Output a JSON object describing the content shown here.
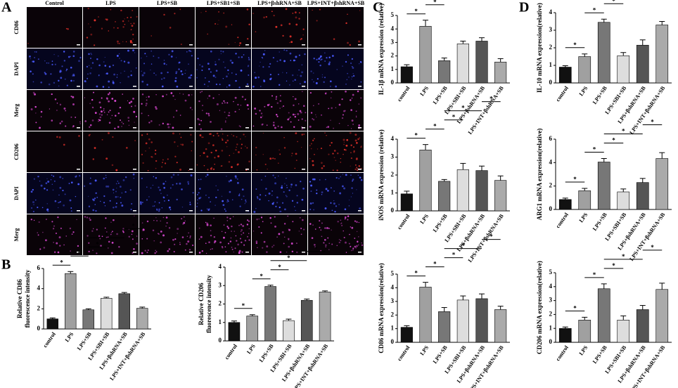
{
  "figure": {
    "panels": [
      "A",
      "B",
      "C",
      "D"
    ],
    "images": {
      "columns": [
        "Control",
        "LPS",
        "LPS+SB",
        "LPS+SB1+SB",
        "LPS+βshRNA+SB",
        "LPS+INT+βshRNA+SB"
      ],
      "rows": [
        "CD86",
        "DAPI",
        "Merg",
        "CD206",
        "DAPI",
        "Merg"
      ]
    }
  },
  "chart_data": [
    {
      "type": "bar",
      "ylabel": [
        "Relative CD86",
        "fluorescence intensity"
      ],
      "categories": [
        "control",
        "LPS",
        "LPS+SB",
        "LPS+SBI+SB",
        "LPS+βshRNA+SB",
        "LPS+INT+βshRNA+SB"
      ],
      "values": [
        1.0,
        5.5,
        1.9,
        3.05,
        3.5,
        2.05
      ],
      "errors": [
        0.1,
        0.2,
        0.1,
        0.1,
        0.12,
        0.12
      ],
      "colors": [
        "#111111",
        "#a0a0a0",
        "#777777",
        "#dddddd",
        "#555555",
        "#aaaaaa"
      ],
      "ylim": [
        0,
        6
      ],
      "yticks": [
        0,
        2,
        4,
        6
      ],
      "significance": [
        {
          "pair": [
            0,
            1
          ],
          "label": "*"
        },
        {
          "pair": [
            1,
            2
          ],
          "label": "*"
        },
        {
          "pair": [
            2,
            3
          ],
          "label": "*"
        },
        {
          "pair": [
            2,
            4
          ],
          "label": "*"
        },
        {
          "pair": [
            4,
            5
          ],
          "label": "*"
        }
      ]
    },
    {
      "type": "bar",
      "ylabel": [
        "Relative CD206",
        "fluorescence intensity"
      ],
      "categories": [
        "control",
        "LPS",
        "LPS+SB",
        "LPS+SBI+SB",
        "LPS+βshRNA+SB",
        "LPS+INT+βshRNA+SB"
      ],
      "values": [
        1.0,
        1.35,
        2.95,
        1.1,
        2.2,
        2.65
      ],
      "errors": [
        0.08,
        0.07,
        0.07,
        0.08,
        0.07,
        0.06
      ],
      "colors": [
        "#111111",
        "#a0a0a0",
        "#777777",
        "#dddddd",
        "#555555",
        "#aaaaaa"
      ],
      "ylim": [
        0,
        4
      ],
      "yticks": [
        0,
        1,
        2,
        3,
        4
      ],
      "significance": [
        {
          "pair": [
            0,
            1
          ],
          "label": "*"
        },
        {
          "pair": [
            1,
            2
          ],
          "label": "*"
        },
        {
          "pair": [
            2,
            3
          ],
          "label": "*"
        },
        {
          "pair": [
            2,
            4
          ],
          "label": "*"
        },
        {
          "pair": [
            4,
            5
          ],
          "label": "*"
        }
      ]
    },
    {
      "type": "bar",
      "ylabel": [
        "IL-1β mRNA expression (relative)"
      ],
      "categories": [
        "control",
        "LPS",
        "LPS+SB",
        "LPS+SBI+SB",
        "LPS+βshRNA+SB",
        "LPS+INT+βshRNA+SB"
      ],
      "values": [
        1.2,
        4.2,
        1.65,
        2.9,
        3.1,
        1.55
      ],
      "errors": [
        0.15,
        0.45,
        0.2,
        0.2,
        0.25,
        0.25
      ],
      "colors": [
        "#111111",
        "#a0a0a0",
        "#777777",
        "#dddddd",
        "#555555",
        "#aaaaaa"
      ],
      "ylim": [
        0,
        5
      ],
      "yticks": [
        0,
        1,
        2,
        3,
        4,
        5
      ],
      "significance": [
        {
          "pair": [
            0,
            1
          ],
          "label": "*"
        },
        {
          "pair": [
            1,
            2
          ],
          "label": "*"
        },
        {
          "pair": [
            2,
            3
          ],
          "label": "*"
        },
        {
          "pair": [
            2,
            4
          ],
          "label": "*"
        },
        {
          "pair": [
            4,
            5
          ],
          "label": "*"
        }
      ]
    },
    {
      "type": "bar",
      "ylabel": [
        "iNOS mRNA expression (relative)"
      ],
      "categories": [
        "control",
        "LPS",
        "LPS+SB",
        "LPS+SBI+SB",
        "LPS+βshRNA+SB",
        "LPS+INT+βshRNA+SB"
      ],
      "values": [
        0.95,
        3.4,
        1.65,
        2.3,
        2.25,
        1.7
      ],
      "errors": [
        0.15,
        0.3,
        0.1,
        0.35,
        0.25,
        0.25
      ],
      "colors": [
        "#111111",
        "#a0a0a0",
        "#777777",
        "#dddddd",
        "#555555",
        "#aaaaaa"
      ],
      "ylim": [
        0,
        4
      ],
      "yticks": [
        0,
        1,
        2,
        3,
        4
      ],
      "significance": [
        {
          "pair": [
            0,
            1
          ],
          "label": "*"
        },
        {
          "pair": [
            1,
            2
          ],
          "label": "*"
        },
        {
          "pair": [
            2,
            3
          ],
          "label": "*"
        },
        {
          "pair": [
            2,
            4
          ],
          "label": "*"
        },
        {
          "pair": [
            4,
            5
          ],
          "label": "*"
        }
      ]
    },
    {
      "type": "bar",
      "ylabel": [
        "CD86 mRNA expression(relative)"
      ],
      "categories": [
        "control",
        "LPS",
        "LPS+SB",
        "LPS+SBI+SB",
        "LPS+βshRNA+SB",
        "LPS+INT+βshRNA+SB"
      ],
      "values": [
        1.1,
        4.05,
        2.25,
        3.1,
        3.2,
        2.4
      ],
      "errors": [
        0.12,
        0.35,
        0.3,
        0.3,
        0.35,
        0.25
      ],
      "colors": [
        "#111111",
        "#a0a0a0",
        "#777777",
        "#dddddd",
        "#555555",
        "#aaaaaa"
      ],
      "ylim": [
        0,
        5
      ],
      "yticks": [
        0,
        1,
        2,
        3,
        4,
        5
      ],
      "significance": [
        {
          "pair": [
            0,
            1
          ],
          "label": "*"
        },
        {
          "pair": [
            1,
            2
          ],
          "label": "*"
        },
        {
          "pair": [
            2,
            3
          ],
          "label": "*"
        },
        {
          "pair": [
            2,
            4
          ],
          "label": "*"
        },
        {
          "pair": [
            4,
            5
          ],
          "label": "*"
        }
      ]
    },
    {
      "type": "bar",
      "ylabel": [
        "IL-10 mRNA expression(relative)"
      ],
      "categories": [
        "control",
        "LPS",
        "LPS+SB",
        "LPS+SBI+SB",
        "LPS+βshRNA+SB",
        "LPS+INT+βshRNA+SB"
      ],
      "values": [
        0.9,
        1.5,
        3.45,
        1.55,
        2.15,
        3.3
      ],
      "errors": [
        0.08,
        0.15,
        0.18,
        0.18,
        0.3,
        0.2
      ],
      "colors": [
        "#111111",
        "#a0a0a0",
        "#777777",
        "#dddddd",
        "#555555",
        "#aaaaaa"
      ],
      "ylim": [
        0,
        4
      ],
      "yticks": [
        0,
        1,
        2,
        3,
        4
      ],
      "significance": [
        {
          "pair": [
            0,
            1
          ],
          "label": "*"
        },
        {
          "pair": [
            1,
            2
          ],
          "label": "*"
        },
        {
          "pair": [
            2,
            3
          ],
          "label": "*"
        },
        {
          "pair": [
            2,
            4
          ],
          "label": "*"
        },
        {
          "pair": [
            4,
            5
          ],
          "label": "*"
        }
      ]
    },
    {
      "type": "bar",
      "ylabel": [
        "ARG1 mRNA expression(relative)"
      ],
      "categories": [
        "control",
        "LPS",
        "LPS+SB",
        "LPS+SBI+SB",
        "LPS+βshRNA+SB",
        "LPS+INT+βshRNA+SB"
      ],
      "values": [
        0.85,
        1.6,
        4.05,
        1.5,
        2.3,
        4.35
      ],
      "errors": [
        0.12,
        0.2,
        0.3,
        0.25,
        0.35,
        0.5
      ],
      "colors": [
        "#111111",
        "#a0a0a0",
        "#777777",
        "#dddddd",
        "#555555",
        "#aaaaaa"
      ],
      "ylim": [
        0,
        6
      ],
      "yticks": [
        0,
        2,
        4,
        6
      ],
      "significance": [
        {
          "pair": [
            0,
            1
          ],
          "label": "*"
        },
        {
          "pair": [
            1,
            2
          ],
          "label": "*"
        },
        {
          "pair": [
            2,
            3
          ],
          "label": "*"
        },
        {
          "pair": [
            2,
            4
          ],
          "label": "*"
        },
        {
          "pair": [
            4,
            5
          ],
          "label": "*"
        }
      ]
    },
    {
      "type": "bar",
      "ylabel": [
        "CD206 mRNA expression(relative)"
      ],
      "categories": [
        "control",
        "LPS",
        "LPS+SB",
        "LPS+SBI+SB",
        "LPS+βshRNA+SB",
        "LPS+INT+βshRNA+SB"
      ],
      "values": [
        1.0,
        1.6,
        3.85,
        1.6,
        2.35,
        3.8
      ],
      "errors": [
        0.1,
        0.2,
        0.35,
        0.3,
        0.3,
        0.45
      ],
      "colors": [
        "#111111",
        "#a0a0a0",
        "#777777",
        "#dddddd",
        "#555555",
        "#aaaaaa"
      ],
      "ylim": [
        0,
        5
      ],
      "yticks": [
        0,
        1,
        2,
        3,
        4,
        5
      ],
      "significance": [
        {
          "pair": [
            0,
            1
          ],
          "label": "*"
        },
        {
          "pair": [
            1,
            2
          ],
          "label": "*"
        },
        {
          "pair": [
            2,
            3
          ],
          "label": "*"
        },
        {
          "pair": [
            2,
            4
          ],
          "label": "*"
        },
        {
          "pair": [
            4,
            5
          ],
          "label": "*"
        }
      ]
    }
  ]
}
